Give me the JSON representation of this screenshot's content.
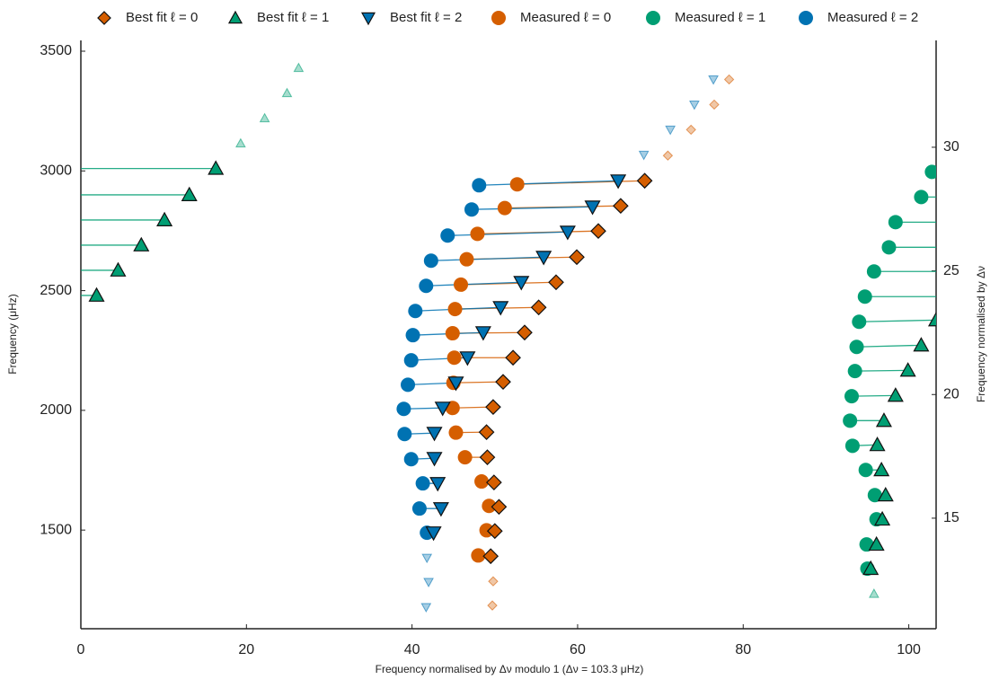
{
  "chart_data": {
    "type": "echelle",
    "xlabel": "Frequency normalised by Δν modulo 1 (Δν = 103.3 μHz)",
    "ylabel": "Frequency (μHz)",
    "y2label": "Frequency normalised by Δν",
    "xlim": [
      0,
      103.3
    ],
    "ylim": [
      1088,
      3545
    ],
    "y2lim": [
      10.53,
      34.32
    ],
    "xticks": [
      0,
      20,
      40,
      60,
      80,
      100
    ],
    "yticks": [
      1500,
      2000,
      2500,
      3000,
      3500
    ],
    "y2ticks": [
      15,
      20,
      25,
      30
    ],
    "grid": false,
    "series": [
      {
        "name": "Best fit ℓ = 0",
        "color": "#d55e00",
        "marker": "diamond",
        "x": [
          49.7,
          49.8,
          49.5,
          50.0,
          50.5,
          49.9,
          49.1,
          49.0,
          49.8,
          51.0,
          52.2,
          53.6,
          55.3,
          57.4,
          59.9,
          62.5,
          65.2,
          68.1,
          70.9,
          73.7,
          76.5,
          78.3
        ],
        "y": [
          1185,
          1286,
          1391,
          1496,
          1597,
          1699,
          1804,
          1909,
          2014,
          2119,
          2220,
          2325,
          2430,
          2535,
          2640,
          2749,
          2854,
          2959,
          3064,
          3172,
          3277,
          3382
        ]
      },
      {
        "name": "Best fit ℓ = 1",
        "color": "#009e73",
        "marker": "triangle-up",
        "x": [
          95.8,
          95.4,
          96.1,
          96.8,
          97.2,
          96.7,
          96.2,
          97.0,
          98.4,
          99.9,
          101.5,
          103.3,
          1.9,
          4.5,
          7.3,
          10.1,
          13.1,
          16.3,
          19.3,
          22.2,
          24.9,
          26.3
        ],
        "y": [
          1234,
          1339,
          1440,
          1545,
          1646,
          1751,
          1856,
          1957,
          2062,
          2167,
          2272,
          2377,
          2480,
          2585,
          2690,
          2795,
          2900,
          3010,
          3115,
          3220,
          3325,
          3430
        ]
      },
      {
        "name": "Best fit ℓ = 2",
        "color": "#0072b2",
        "marker": "triangle-down",
        "x": [
          41.7,
          42.0,
          41.8,
          42.6,
          43.5,
          43.1,
          42.7,
          42.7,
          43.7,
          45.3,
          46.7,
          48.6,
          50.7,
          53.2,
          55.9,
          58.8,
          61.8,
          64.9,
          68.0,
          71.2,
          74.1,
          76.4
        ],
        "y": [
          1178,
          1283,
          1384,
          1489,
          1590,
          1695,
          1800,
          1905,
          2010,
          2115,
          2220,
          2325,
          2430,
          2535,
          2640,
          2745,
          2850,
          2959,
          3067,
          3172,
          3277,
          3382
        ]
      },
      {
        "name": "Measured ℓ = 0",
        "color": "#d55e00",
        "marker": "circle",
        "x": [
          null,
          null,
          48.0,
          49.0,
          49.3,
          48.4,
          46.4,
          45.3,
          44.9,
          45.0,
          45.1,
          44.9,
          45.2,
          45.9,
          46.6,
          47.9,
          51.2,
          52.7,
          null,
          null,
          null,
          null
        ],
        "y": [
          null,
          null,
          1394,
          1499,
          1601,
          1703,
          1804,
          1907,
          2010,
          2115,
          2220,
          2322,
          2423,
          2525,
          2631,
          2737,
          2845,
          2944,
          null,
          null,
          null,
          null
        ]
      },
      {
        "name": "Measured ℓ = 1",
        "color": "#009e73",
        "marker": "circle",
        "x": [
          null,
          95.0,
          94.9,
          96.1,
          95.9,
          94.8,
          93.2,
          92.9,
          93.1,
          93.5,
          93.7,
          94.0,
          94.7,
          95.8,
          97.6,
          98.4,
          101.5,
          102.8,
          null,
          null,
          null,
          null
        ],
        "y": [
          null,
          1339,
          1440,
          1545,
          1646,
          1751,
          1852,
          1957,
          2059,
          2164,
          2265,
          2370,
          2475,
          2580,
          2681,
          2786,
          2891,
          2996,
          null,
          null,
          null,
          null
        ]
      },
      {
        "name": "Measured ℓ = 2",
        "color": "#0072b2",
        "marker": "circle",
        "x": [
          null,
          null,
          null,
          41.8,
          40.9,
          41.3,
          39.9,
          39.1,
          39.0,
          39.5,
          39.9,
          40.1,
          40.4,
          41.7,
          42.3,
          44.3,
          47.2,
          48.1,
          null,
          null,
          null,
          null
        ],
        "y": [
          null,
          null,
          null,
          1489,
          1590,
          1695,
          1796,
          1901,
          2006,
          2107,
          2209,
          2314,
          2415,
          2520,
          2625,
          2730,
          2839,
          2940,
          null,
          null,
          null,
          null
        ]
      }
    ]
  }
}
